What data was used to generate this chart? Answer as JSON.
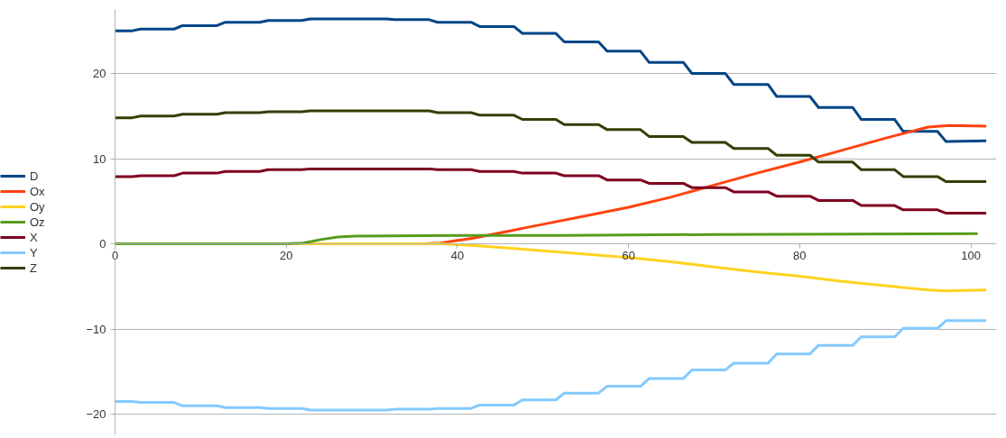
{
  "chart_data": {
    "type": "line",
    "xlim": [
      0,
      103
    ],
    "ylim": [
      -22.4,
      27.5
    ],
    "xticks": [
      0,
      20,
      40,
      60,
      80,
      100
    ],
    "yticks": [
      -20,
      -10,
      0,
      10,
      20
    ],
    "grid": "y",
    "legend": "left",
    "marker": "none",
    "line_style": "solid",
    "series": [
      {
        "name": "D",
        "color": "#004586",
        "x": [
          0,
          2.0,
          3.0,
          6.9,
          7.9,
          11.9,
          12.9,
          16.9,
          17.9,
          21.8,
          22.8,
          26.8,
          27.8,
          31.7,
          32.7,
          36.7,
          37.7,
          41.6,
          42.6,
          46.6,
          47.6,
          51.5,
          52.5,
          56.5,
          57.5,
          61.4,
          62.4,
          66.4,
          67.4,
          71.3,
          72.3,
          76.3,
          77.3,
          81.2,
          82.2,
          86.2,
          87.2,
          91.1,
          92.1,
          96.1,
          97.1,
          101.8
        ],
        "values": [
          25.0,
          25.0,
          25.2,
          25.2,
          25.6,
          25.6,
          26.0,
          26.0,
          26.2,
          26.2,
          26.4,
          26.4,
          26.4,
          26.4,
          26.3,
          26.3,
          26.0,
          26.0,
          25.5,
          25.5,
          24.7,
          24.7,
          23.7,
          23.7,
          22.6,
          22.6,
          21.3,
          21.3,
          20.0,
          20.0,
          18.7,
          18.7,
          17.3,
          17.3,
          16.0,
          16.0,
          14.6,
          14.6,
          13.2,
          13.2,
          12.0,
          12.1
        ]
      },
      {
        "name": "Ox",
        "color": "#ff420e",
        "x": [
          0,
          36,
          38,
          40,
          42,
          44,
          46,
          48,
          50,
          55,
          60,
          65,
          70,
          75,
          80,
          85,
          90,
          95,
          97.5,
          101.8
        ],
        "values": [
          0,
          0,
          0.1,
          0.4,
          0.7,
          1.1,
          1.5,
          1.9,
          2.3,
          3.3,
          4.3,
          5.5,
          6.9,
          8.3,
          9.6,
          11.0,
          12.4,
          13.7,
          13.9,
          13.8
        ]
      },
      {
        "name": "Oy",
        "color": "#ffd320",
        "x": [
          0,
          38,
          42,
          46,
          50,
          55,
          60,
          65,
          70,
          75,
          80,
          85,
          90,
          95,
          97,
          101.8
        ],
        "values": [
          0,
          0,
          -0.2,
          -0.5,
          -0.8,
          -1.2,
          -1.6,
          -2.1,
          -2.7,
          -3.3,
          -3.8,
          -4.4,
          -4.9,
          -5.4,
          -5.5,
          -5.4
        ]
      },
      {
        "name": "Oz",
        "color": "#579d1c",
        "x": [
          0,
          20,
          22,
          24,
          26,
          28,
          40,
          52,
          70,
          100.8
        ],
        "values": [
          0,
          0,
          0.1,
          0.5,
          0.8,
          0.9,
          1.0,
          1.0,
          1.1,
          1.2
        ]
      },
      {
        "name": "X",
        "color": "#7e0021",
        "x": [
          0,
          2.0,
          3.0,
          6.9,
          7.9,
          11.9,
          12.9,
          16.9,
          17.9,
          21.8,
          22.8,
          26.8,
          27.8,
          31.7,
          32.7,
          36.7,
          37.7,
          41.6,
          42.6,
          46.6,
          47.6,
          51.5,
          52.5,
          56.5,
          57.5,
          61.4,
          62.4,
          66.4,
          67.4,
          71.3,
          72.3,
          76.3,
          77.3,
          81.2,
          82.2,
          86.2,
          87.2,
          91.1,
          92.1,
          96.1,
          97.1,
          101.8
        ],
        "values": [
          7.9,
          7.9,
          8.0,
          8.0,
          8.3,
          8.3,
          8.5,
          8.5,
          8.7,
          8.7,
          8.8,
          8.8,
          8.8,
          8.8,
          8.8,
          8.8,
          8.7,
          8.7,
          8.5,
          8.5,
          8.3,
          8.3,
          8.0,
          8.0,
          7.5,
          7.5,
          7.1,
          7.1,
          6.6,
          6.6,
          6.1,
          6.1,
          5.6,
          5.6,
          5.1,
          5.1,
          4.5,
          4.5,
          4.0,
          4.0,
          3.6,
          3.6
        ]
      },
      {
        "name": "Y",
        "color": "#83caff",
        "x": [
          0,
          2.0,
          3.0,
          6.9,
          7.9,
          11.9,
          12.9,
          16.9,
          17.9,
          21.8,
          22.8,
          26.8,
          27.8,
          31.7,
          32.7,
          36.7,
          37.7,
          41.6,
          42.6,
          46.6,
          47.6,
          51.5,
          52.5,
          56.5,
          57.5,
          61.4,
          62.4,
          66.4,
          67.4,
          71.3,
          72.3,
          76.3,
          77.3,
          81.2,
          82.2,
          86.2,
          87.2,
          91.1,
          92.1,
          96.1,
          97.1,
          101.8
        ],
        "values": [
          -18.5,
          -18.5,
          -18.6,
          -18.6,
          -19.0,
          -19.0,
          -19.2,
          -19.2,
          -19.3,
          -19.3,
          -19.5,
          -19.5,
          -19.5,
          -19.5,
          -19.4,
          -19.4,
          -19.3,
          -19.3,
          -18.9,
          -18.9,
          -18.3,
          -18.3,
          -17.5,
          -17.5,
          -16.7,
          -16.7,
          -15.8,
          -15.8,
          -14.8,
          -14.8,
          -14.0,
          -14.0,
          -12.9,
          -12.9,
          -11.9,
          -11.9,
          -10.9,
          -10.9,
          -9.9,
          -9.9,
          -9.0,
          -9.0
        ]
      },
      {
        "name": "Z",
        "color": "#314004",
        "x": [
          0,
          2.0,
          3.0,
          6.9,
          7.9,
          11.9,
          12.9,
          16.9,
          17.9,
          21.8,
          22.8,
          26.8,
          27.8,
          31.7,
          32.7,
          36.7,
          37.7,
          41.6,
          42.6,
          46.6,
          47.6,
          51.5,
          52.5,
          56.5,
          57.5,
          61.4,
          62.4,
          66.4,
          67.4,
          71.3,
          72.3,
          76.3,
          77.3,
          81.2,
          82.2,
          86.2,
          87.2,
          91.1,
          92.1,
          96.1,
          97.1,
          101.8
        ],
        "values": [
          14.8,
          14.8,
          15.0,
          15.0,
          15.2,
          15.2,
          15.4,
          15.4,
          15.5,
          15.5,
          15.6,
          15.6,
          15.6,
          15.6,
          15.6,
          15.6,
          15.4,
          15.4,
          15.1,
          15.1,
          14.6,
          14.6,
          14.0,
          14.0,
          13.4,
          13.4,
          12.6,
          12.6,
          11.9,
          11.9,
          11.2,
          11.2,
          10.4,
          10.4,
          9.6,
          9.6,
          8.7,
          8.7,
          7.9,
          7.9,
          7.3,
          7.3
        ]
      }
    ]
  }
}
